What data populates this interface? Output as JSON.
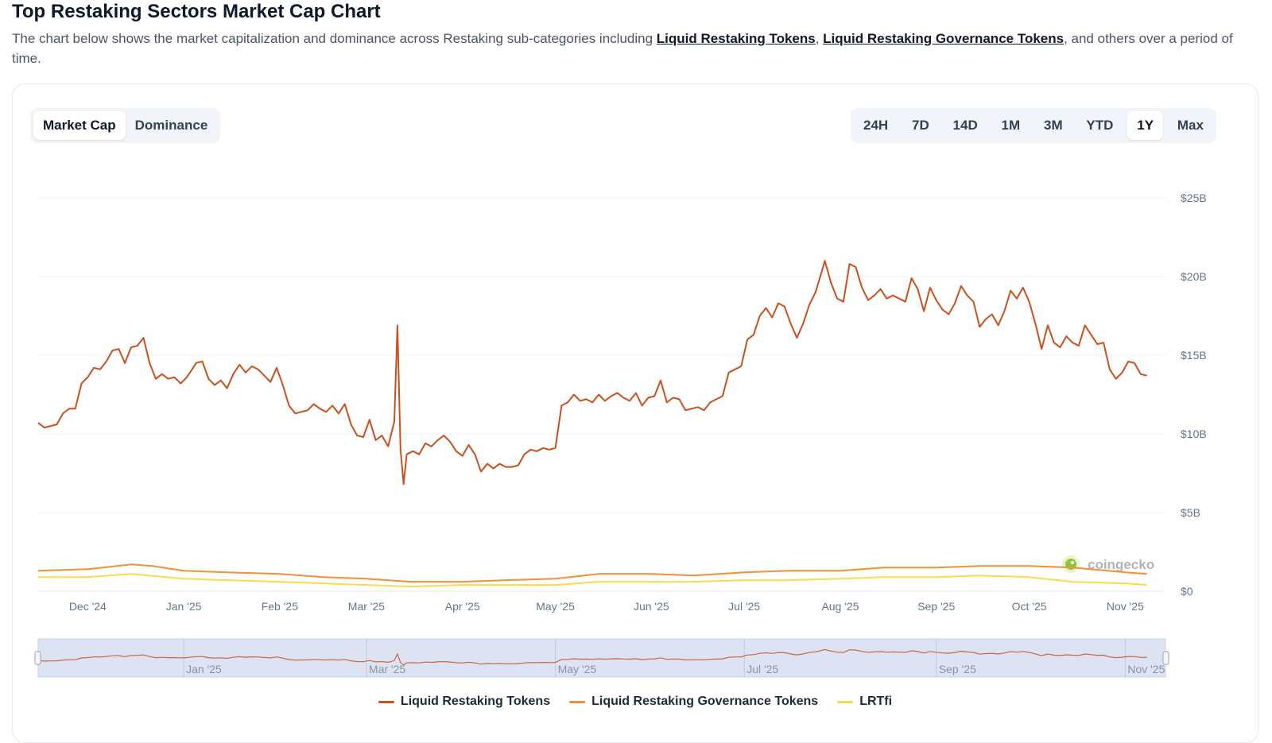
{
  "page": {
    "title": "Top Restaking Sectors Market Cap Chart",
    "desc_before": "The chart below shows the market capitalization and dominance across Restaking sub-categories including ",
    "link1": "Liquid Restaking Tokens",
    "sep": ", ",
    "link2": "Liquid Restaking Governance Tokens",
    "desc_after": ", and others over a period of time."
  },
  "toggle": {
    "options": [
      "Market Cap",
      "Dominance"
    ],
    "selected": "Market Cap"
  },
  "ranges": {
    "options": [
      "24H",
      "7D",
      "14D",
      "1M",
      "3M",
      "YTD",
      "1Y",
      "Max"
    ],
    "selected": "1Y"
  },
  "watermark": "coingecko",
  "colors": {
    "lrt": "#c8511f",
    "lrgt": "#f0913a",
    "lrtfi": "#f7dc4a",
    "grid": "#eef0f3",
    "navigator_bg": "#dde3f3"
  },
  "chart_data": {
    "type": "line",
    "x_start": "2024-11-15",
    "x_end": "2025-11-14",
    "ylim": [
      0,
      25
    ],
    "y_unit": "B",
    "y_ticks": [
      "$0",
      "$5B",
      "$10B",
      "$15B",
      "$20B",
      "$25B"
    ],
    "x_ticks": [
      {
        "label": "Dec '24",
        "date": "2024-12-01"
      },
      {
        "label": "Jan '25",
        "date": "2025-01-01"
      },
      {
        "label": "Feb '25",
        "date": "2025-02-01"
      },
      {
        "label": "Mar '25",
        "date": "2025-03-01"
      },
      {
        "label": "Apr '25",
        "date": "2025-04-01"
      },
      {
        "label": "May '25",
        "date": "2025-05-01"
      },
      {
        "label": "Jun '25",
        "date": "2025-06-01"
      },
      {
        "label": "Jul '25",
        "date": "2025-07-01"
      },
      {
        "label": "Aug '25",
        "date": "2025-08-01"
      },
      {
        "label": "Sep '25",
        "date": "2025-09-01"
      },
      {
        "label": "Oct '25",
        "date": "2025-10-01"
      },
      {
        "label": "Nov '25",
        "date": "2025-11-01"
      }
    ],
    "navigator_ticks": [
      "Jan '25",
      "Mar '25",
      "May '25",
      "Jul '25",
      "Sep '25",
      "Nov '25"
    ],
    "series": [
      {
        "name": "Liquid Restaking Tokens",
        "color": "#c8511f",
        "points": [
          [
            "2024-11-15",
            10.7
          ],
          [
            "2024-11-17",
            10.4
          ],
          [
            "2024-11-19",
            10.5
          ],
          [
            "2024-11-21",
            10.6
          ],
          [
            "2024-11-23",
            11.3
          ],
          [
            "2024-11-25",
            11.6
          ],
          [
            "2024-11-27",
            11.6
          ],
          [
            "2024-11-29",
            13.2
          ],
          [
            "2024-12-01",
            13.6
          ],
          [
            "2024-12-03",
            14.2
          ],
          [
            "2024-12-05",
            14.1
          ],
          [
            "2024-12-07",
            14.6
          ],
          [
            "2024-12-09",
            15.3
          ],
          [
            "2024-12-11",
            15.4
          ],
          [
            "2024-12-13",
            14.5
          ],
          [
            "2024-12-15",
            15.5
          ],
          [
            "2024-12-17",
            15.6
          ],
          [
            "2024-12-19",
            16.1
          ],
          [
            "2024-12-21",
            14.5
          ],
          [
            "2024-12-23",
            13.5
          ],
          [
            "2024-12-25",
            13.8
          ],
          [
            "2024-12-27",
            13.5
          ],
          [
            "2024-12-29",
            13.6
          ],
          [
            "2024-12-31",
            13.2
          ],
          [
            "2025-01-02",
            13.6
          ],
          [
            "2025-01-05",
            14.5
          ],
          [
            "2025-01-07",
            14.6
          ],
          [
            "2025-01-09",
            13.5
          ],
          [
            "2025-01-11",
            13.1
          ],
          [
            "2025-01-13",
            13.4
          ],
          [
            "2025-01-15",
            12.9
          ],
          [
            "2025-01-17",
            13.8
          ],
          [
            "2025-01-19",
            14.4
          ],
          [
            "2025-01-21",
            13.9
          ],
          [
            "2025-01-23",
            14.3
          ],
          [
            "2025-01-25",
            14.1
          ],
          [
            "2025-01-27",
            13.7
          ],
          [
            "2025-01-29",
            13.3
          ],
          [
            "2025-01-31",
            14.2
          ],
          [
            "2025-02-02",
            13.1
          ],
          [
            "2025-02-04",
            11.8
          ],
          [
            "2025-02-06",
            11.3
          ],
          [
            "2025-02-08",
            11.4
          ],
          [
            "2025-02-10",
            11.5
          ],
          [
            "2025-02-12",
            11.9
          ],
          [
            "2025-02-14",
            11.6
          ],
          [
            "2025-02-16",
            11.4
          ],
          [
            "2025-02-18",
            11.8
          ],
          [
            "2025-02-20",
            11.3
          ],
          [
            "2025-02-22",
            11.9
          ],
          [
            "2025-02-24",
            10.6
          ],
          [
            "2025-02-26",
            9.9
          ],
          [
            "2025-02-28",
            9.8
          ],
          [
            "2025-03-02",
            10.9
          ],
          [
            "2025-03-04",
            9.6
          ],
          [
            "2025-03-06",
            9.9
          ],
          [
            "2025-03-08",
            9.2
          ],
          [
            "2025-03-10",
            10.8
          ],
          [
            "2025-03-11",
            16.9
          ],
          [
            "2025-03-12",
            9.0
          ],
          [
            "2025-03-13",
            6.8
          ],
          [
            "2025-03-14",
            8.7
          ],
          [
            "2025-03-16",
            8.9
          ],
          [
            "2025-03-18",
            8.7
          ],
          [
            "2025-03-20",
            9.4
          ],
          [
            "2025-03-22",
            9.2
          ],
          [
            "2025-03-24",
            9.6
          ],
          [
            "2025-03-26",
            9.9
          ],
          [
            "2025-03-28",
            9.5
          ],
          [
            "2025-03-30",
            8.9
          ],
          [
            "2025-04-01",
            8.6
          ],
          [
            "2025-04-03",
            9.3
          ],
          [
            "2025-04-05",
            8.7
          ],
          [
            "2025-04-07",
            7.6
          ],
          [
            "2025-04-09",
            8.1
          ],
          [
            "2025-04-11",
            7.8
          ],
          [
            "2025-04-13",
            8.1
          ],
          [
            "2025-04-15",
            7.9
          ],
          [
            "2025-04-17",
            7.9
          ],
          [
            "2025-04-19",
            8.0
          ],
          [
            "2025-04-21",
            8.7
          ],
          [
            "2025-04-23",
            9.0
          ],
          [
            "2025-04-25",
            8.9
          ],
          [
            "2025-04-27",
            9.1
          ],
          [
            "2025-04-29",
            9.0
          ],
          [
            "2025-05-01",
            9.1
          ],
          [
            "2025-05-03",
            11.8
          ],
          [
            "2025-05-05",
            12.0
          ],
          [
            "2025-05-07",
            12.5
          ],
          [
            "2025-05-09",
            12.1
          ],
          [
            "2025-05-11",
            12.2
          ],
          [
            "2025-05-13",
            12.0
          ],
          [
            "2025-05-15",
            12.5
          ],
          [
            "2025-05-17",
            12.1
          ],
          [
            "2025-05-19",
            12.4
          ],
          [
            "2025-05-21",
            12.6
          ],
          [
            "2025-05-23",
            12.3
          ],
          [
            "2025-05-25",
            12.1
          ],
          [
            "2025-05-27",
            12.6
          ],
          [
            "2025-05-29",
            11.8
          ],
          [
            "2025-05-31",
            12.3
          ],
          [
            "2025-06-02",
            12.4
          ],
          [
            "2025-06-04",
            13.4
          ],
          [
            "2025-06-06",
            12.0
          ],
          [
            "2025-06-08",
            12.3
          ],
          [
            "2025-06-10",
            12.2
          ],
          [
            "2025-06-12",
            11.5
          ],
          [
            "2025-06-14",
            11.6
          ],
          [
            "2025-06-16",
            11.7
          ],
          [
            "2025-06-18",
            11.5
          ],
          [
            "2025-06-20",
            12.0
          ],
          [
            "2025-06-22",
            12.2
          ],
          [
            "2025-06-24",
            12.4
          ],
          [
            "2025-06-26",
            13.9
          ],
          [
            "2025-06-28",
            14.1
          ],
          [
            "2025-06-30",
            14.3
          ],
          [
            "2025-07-02",
            16.0
          ],
          [
            "2025-07-04",
            16.3
          ],
          [
            "2025-07-06",
            17.5
          ],
          [
            "2025-07-08",
            18.0
          ],
          [
            "2025-07-10",
            17.4
          ],
          [
            "2025-07-12",
            18.3
          ],
          [
            "2025-07-14",
            18.1
          ],
          [
            "2025-07-16",
            17.0
          ],
          [
            "2025-07-18",
            16.1
          ],
          [
            "2025-07-20",
            17.0
          ],
          [
            "2025-07-22",
            18.2
          ],
          [
            "2025-07-24",
            19.0
          ],
          [
            "2025-07-26",
            20.3
          ],
          [
            "2025-07-27",
            21.0
          ],
          [
            "2025-07-29",
            19.6
          ],
          [
            "2025-07-31",
            18.6
          ],
          [
            "2025-08-02",
            18.4
          ],
          [
            "2025-08-04",
            20.8
          ],
          [
            "2025-08-06",
            20.6
          ],
          [
            "2025-08-08",
            19.3
          ],
          [
            "2025-08-10",
            18.5
          ],
          [
            "2025-08-12",
            18.8
          ],
          [
            "2025-08-14",
            19.2
          ],
          [
            "2025-08-16",
            18.6
          ],
          [
            "2025-08-18",
            18.8
          ],
          [
            "2025-08-20",
            18.6
          ],
          [
            "2025-08-22",
            18.4
          ],
          [
            "2025-08-24",
            19.9
          ],
          [
            "2025-08-26",
            19.2
          ],
          [
            "2025-08-28",
            17.8
          ],
          [
            "2025-08-30",
            19.3
          ],
          [
            "2025-09-01",
            18.5
          ],
          [
            "2025-09-03",
            17.9
          ],
          [
            "2025-09-05",
            17.6
          ],
          [
            "2025-09-07",
            18.3
          ],
          [
            "2025-09-09",
            19.4
          ],
          [
            "2025-09-11",
            18.8
          ],
          [
            "2025-09-13",
            18.4
          ],
          [
            "2025-09-15",
            16.8
          ],
          [
            "2025-09-17",
            17.3
          ],
          [
            "2025-09-19",
            17.6
          ],
          [
            "2025-09-21",
            16.9
          ],
          [
            "2025-09-23",
            17.8
          ],
          [
            "2025-09-25",
            19.1
          ],
          [
            "2025-09-27",
            18.6
          ],
          [
            "2025-09-29",
            19.3
          ],
          [
            "2025-10-01",
            18.4
          ],
          [
            "2025-10-03",
            17.0
          ],
          [
            "2025-10-05",
            15.4
          ],
          [
            "2025-10-07",
            16.9
          ],
          [
            "2025-10-09",
            15.8
          ],
          [
            "2025-10-11",
            15.5
          ],
          [
            "2025-10-13",
            16.2
          ],
          [
            "2025-10-15",
            15.8
          ],
          [
            "2025-10-17",
            15.6
          ],
          [
            "2025-10-19",
            16.9
          ],
          [
            "2025-10-21",
            16.3
          ],
          [
            "2025-10-23",
            15.7
          ],
          [
            "2025-10-25",
            15.8
          ],
          [
            "2025-10-27",
            14.1
          ],
          [
            "2025-10-29",
            13.5
          ],
          [
            "2025-10-31",
            13.9
          ],
          [
            "2025-11-02",
            14.6
          ],
          [
            "2025-11-04",
            14.5
          ],
          [
            "2025-11-06",
            13.8
          ],
          [
            "2025-11-08",
            13.7
          ]
        ]
      },
      {
        "name": "Liquid Restaking Governance Tokens",
        "color": "#f0913a",
        "points": [
          [
            "2024-11-15",
            1.3
          ],
          [
            "2024-12-01",
            1.4
          ],
          [
            "2024-12-15",
            1.7
          ],
          [
            "2024-12-22",
            1.6
          ],
          [
            "2025-01-01",
            1.3
          ],
          [
            "2025-01-15",
            1.2
          ],
          [
            "2025-02-01",
            1.1
          ],
          [
            "2025-02-15",
            0.9
          ],
          [
            "2025-03-01",
            0.8
          ],
          [
            "2025-03-15",
            0.6
          ],
          [
            "2025-04-01",
            0.6
          ],
          [
            "2025-04-15",
            0.7
          ],
          [
            "2025-05-01",
            0.8
          ],
          [
            "2025-05-15",
            1.1
          ],
          [
            "2025-06-01",
            1.1
          ],
          [
            "2025-06-15",
            1.0
          ],
          [
            "2025-07-01",
            1.2
          ],
          [
            "2025-07-15",
            1.3
          ],
          [
            "2025-08-01",
            1.3
          ],
          [
            "2025-08-15",
            1.5
          ],
          [
            "2025-09-01",
            1.5
          ],
          [
            "2025-09-15",
            1.6
          ],
          [
            "2025-10-01",
            1.6
          ],
          [
            "2025-10-15",
            1.5
          ],
          [
            "2025-11-01",
            1.2
          ],
          [
            "2025-11-08",
            1.1
          ]
        ]
      },
      {
        "name": "LRTfi",
        "color": "#f7dc4a",
        "points": [
          [
            "2024-11-15",
            0.9
          ],
          [
            "2024-12-01",
            0.9
          ],
          [
            "2024-12-15",
            1.1
          ],
          [
            "2025-01-01",
            0.8
          ],
          [
            "2025-01-15",
            0.7
          ],
          [
            "2025-02-01",
            0.6
          ],
          [
            "2025-02-15",
            0.5
          ],
          [
            "2025-03-01",
            0.4
          ],
          [
            "2025-03-15",
            0.3
          ],
          [
            "2025-04-01",
            0.4
          ],
          [
            "2025-04-15",
            0.4
          ],
          [
            "2025-05-01",
            0.4
          ],
          [
            "2025-05-15",
            0.6
          ],
          [
            "2025-06-01",
            0.6
          ],
          [
            "2025-06-15",
            0.6
          ],
          [
            "2025-07-01",
            0.7
          ],
          [
            "2025-07-15",
            0.7
          ],
          [
            "2025-08-01",
            0.8
          ],
          [
            "2025-08-15",
            0.9
          ],
          [
            "2025-09-01",
            0.9
          ],
          [
            "2025-09-15",
            1.0
          ],
          [
            "2025-10-01",
            0.9
          ],
          [
            "2025-10-15",
            0.6
          ],
          [
            "2025-11-01",
            0.5
          ],
          [
            "2025-11-08",
            0.4
          ]
        ]
      }
    ]
  }
}
